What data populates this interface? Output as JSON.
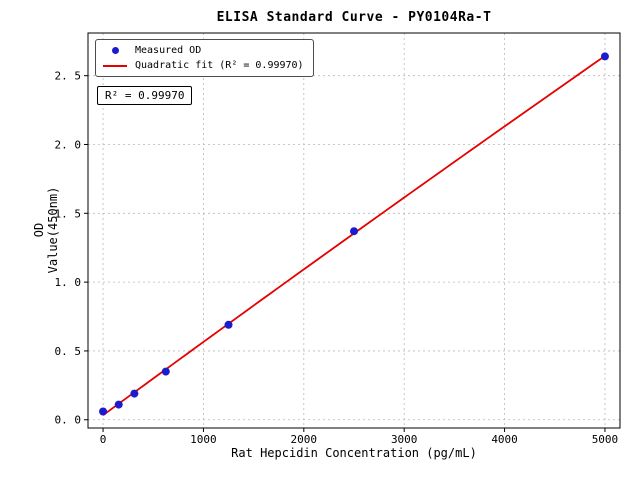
{
  "chart_data": {
    "type": "scatter",
    "title": "ELISA Standard Curve - PY0104Ra-T",
    "xlabel": "Rat Hepcidin Concentration (pg/mL)",
    "ylabel": "OD Value(450nm)",
    "xlim": [
      -150,
      5150
    ],
    "ylim": [
      -0.06,
      2.81
    ],
    "xticks": {
      "values": [
        0,
        1000,
        2000,
        3000,
        4000,
        5000
      ],
      "labels": [
        "0",
        "1000",
        "2000",
        "3000",
        "4000",
        "5000"
      ]
    },
    "yticks": {
      "values": [
        0.0,
        0.5,
        1.0,
        1.5,
        2.0,
        2.5
      ],
      "labels": [
        "0. 0",
        "0. 5",
        "1. 0",
        "1. 5",
        "2. 0",
        "2. 5"
      ]
    },
    "grid": true,
    "legend_position": "upper-left",
    "series": [
      {
        "name": "Measured OD",
        "type": "scatter",
        "color": "#1c1ccd",
        "x": [
          0,
          156,
          312,
          625,
          1250,
          2500,
          5000
        ],
        "y": [
          0.06,
          0.11,
          0.19,
          0.35,
          0.69,
          1.37,
          2.64
        ]
      },
      {
        "name": "Quadratic fit (R² = 0.99970)",
        "type": "quadratic-fit",
        "color": "#e60000",
        "fit_of": 0
      }
    ],
    "annotation": "R² = 0.99970",
    "r_squared": "0.99970",
    "frame_color": "#000000",
    "grid_color": "#b8b8b8",
    "background": "#ffffff"
  }
}
